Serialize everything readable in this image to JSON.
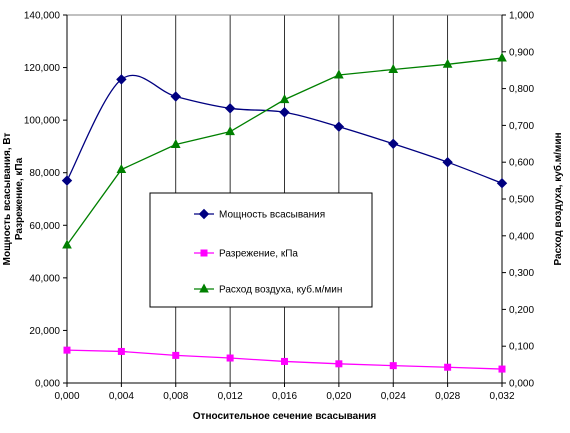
{
  "chart_data": {
    "type": "line",
    "title": "",
    "xlabel": "Относительное сечение всасывания",
    "ylabel_left": [
      "Мощность всасывания, Вт",
      "Разрежение, кПа"
    ],
    "ylabel_right": "Расход воздуха, куб.м/мин",
    "x": [
      0.0,
      0.004,
      0.008,
      0.012,
      0.016,
      0.02,
      0.024,
      0.028,
      0.032
    ],
    "x_tick_labels": [
      "0,000",
      "0,004",
      "0,008",
      "0,012",
      "0,016",
      "0,020",
      "0,024",
      "0,028",
      "0,032"
    ],
    "xlim": [
      0,
      0.032
    ],
    "ylim_left": [
      0,
      140000
    ],
    "ylim_right": [
      0,
      1.0
    ],
    "y_left_tick_labels": [
      "0,000",
      "20,000",
      "40,000",
      "60,000",
      "80,000",
      "100,000",
      "120,000",
      "140,000"
    ],
    "y_right_tick_labels": [
      "0,000",
      "0,100",
      "0,200",
      "0,300",
      "0,400",
      "0,500",
      "0,600",
      "0,700",
      "0,800",
      "0,900",
      "1,000"
    ],
    "grid": "vertical",
    "legend_position": "center",
    "series": [
      {
        "name": "Мощность всасывания",
        "axis": "left",
        "color": "#000080",
        "marker": "diamond",
        "smooth": true,
        "values": [
          77000,
          115500,
          109000,
          104500,
          103000,
          97500,
          91000,
          84000,
          76000
        ]
      },
      {
        "name": "Разрежение, кПа",
        "axis": "left",
        "color": "#ff00ff",
        "marker": "square",
        "smooth": false,
        "values": [
          12500,
          12000,
          10500,
          9500,
          8200,
          7300,
          6600,
          6000,
          5300
        ]
      },
      {
        "name": "Расход воздуха, куб.м/мин",
        "axis": "right",
        "color": "#008000",
        "marker": "triangle",
        "smooth": false,
        "values": [
          0.375,
          0.58,
          0.648,
          0.683,
          0.77,
          0.837,
          0.852,
          0.866,
          0.883
        ]
      }
    ]
  }
}
